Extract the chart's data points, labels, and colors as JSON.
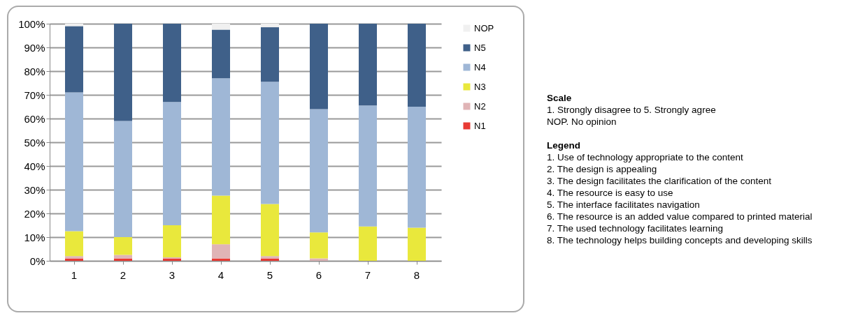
{
  "chart_data": {
    "type": "bar",
    "stacked": true,
    "categories": [
      "1",
      "2",
      "3",
      "4",
      "5",
      "6",
      "7",
      "8"
    ],
    "series": [
      {
        "name": "N1",
        "color": "#e83a34",
        "values": [
          1,
          1,
          1,
          1,
          1,
          0,
          0,
          0
        ]
      },
      {
        "name": "N2",
        "color": "#e0b4b6",
        "values": [
          1,
          1.5,
          0.5,
          6,
          1,
          1,
          0,
          0
        ]
      },
      {
        "name": "N3",
        "color": "#e9e83c",
        "values": [
          10.5,
          7.5,
          13.5,
          20.5,
          22,
          11,
          14.5,
          14
        ]
      },
      {
        "name": "N4",
        "color": "#9fb7d6",
        "values": [
          58.5,
          49,
          52,
          49.5,
          51.5,
          52,
          51,
          51
        ]
      },
      {
        "name": "N5",
        "color": "#3f6089",
        "values": [
          28,
          41,
          33,
          20.5,
          23,
          36,
          34.5,
          35
        ]
      },
      {
        "name": "NOP",
        "color": "#f0f0f0",
        "values": [
          1,
          0,
          0,
          2.5,
          1.5,
          0,
          0,
          0
        ]
      }
    ],
    "ylim": [
      0,
      100
    ],
    "yticks": [
      {
        "value": 0,
        "label": "0%"
      },
      {
        "value": 10,
        "label": "10%"
      },
      {
        "value": 20,
        "label": "20%"
      },
      {
        "value": 30,
        "label": "30%"
      },
      {
        "value": 40,
        "label": "40%"
      },
      {
        "value": 50,
        "label": "50%"
      },
      {
        "value": 60,
        "label": "60%"
      },
      {
        "value": 70,
        "label": "70%"
      },
      {
        "value": 80,
        "label": "80%"
      },
      {
        "value": 90,
        "label": "90%"
      },
      {
        "value": 100,
        "label": "100%"
      }
    ],
    "grid": "y",
    "legend": "right",
    "annotations": [
      "Scale",
      "1. Strongly disagree to 5. Strongly agree",
      "NOP. No opinion",
      "Legend",
      "1. Use of technology appropriate to the content",
      "2. The design is appealing",
      "3. The design facilitates the clarification of the content",
      "4. The resource is easy to use",
      "5. The interface facilitates navigation",
      "6. The resource is an added value compared to printed material",
      "7. The used technology facilitates learning",
      "8. The technology helps building concepts and developing skills"
    ]
  }
}
